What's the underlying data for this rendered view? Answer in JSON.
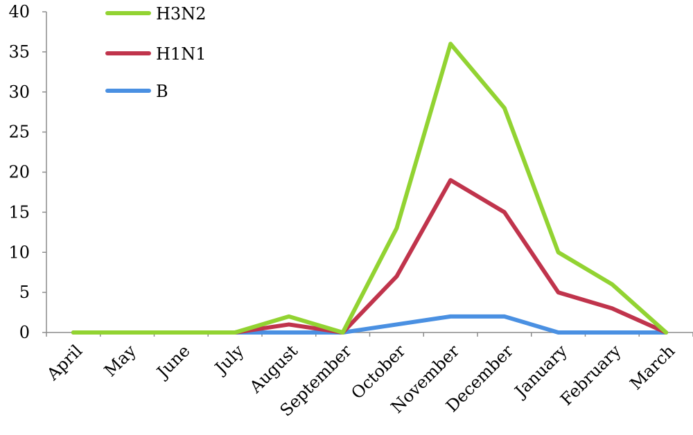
{
  "chart_data": {
    "type": "line",
    "categories": [
      "April",
      "May",
      "June",
      "July",
      "August",
      "September",
      "October",
      "November",
      "December",
      "January",
      "February",
      "March"
    ],
    "series": [
      {
        "name": "H3N2",
        "color": "#92D332",
        "values": [
          0,
          0,
          0,
          0,
          2,
          0,
          13,
          36,
          28,
          10,
          6,
          0
        ]
      },
      {
        "name": "H1N1",
        "color": "#C0344C",
        "values": [
          0,
          0,
          0,
          0,
          1,
          0,
          7,
          19,
          15,
          5,
          3,
          0
        ]
      },
      {
        "name": "B",
        "color": "#4A90E2",
        "values": [
          0,
          0,
          0,
          0,
          0,
          0,
          1,
          2,
          2,
          0,
          0,
          0
        ]
      }
    ],
    "yticks": [
      0,
      5,
      10,
      15,
      20,
      25,
      30,
      35,
      40
    ],
    "ylim": [
      0,
      40
    ],
    "title": "",
    "xlabel": "",
    "ylabel": "",
    "grid": false,
    "legend_position": "top-left"
  }
}
